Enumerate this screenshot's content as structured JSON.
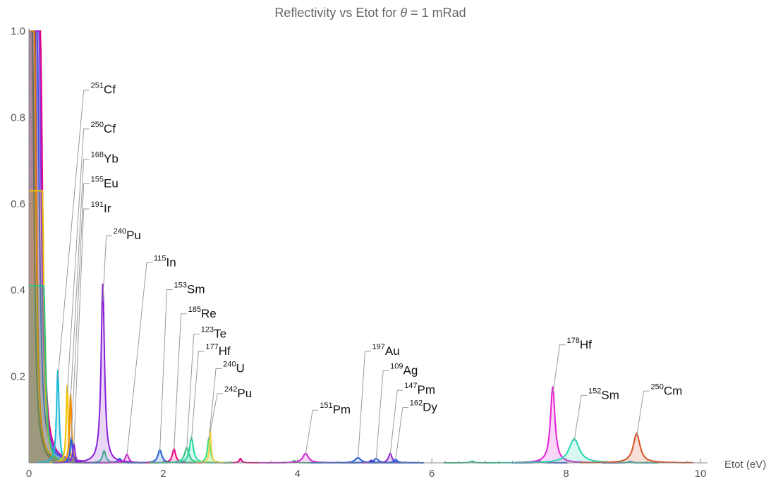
{
  "chart_data": {
    "type": "line",
    "title_prefix": "Reflectivity vs Etot for ",
    "title_symbol": "θ",
    "title_suffix": " = 1 mRad",
    "xlabel": "Etot (eV)",
    "ylabel": "",
    "xlim": [
      0,
      10
    ],
    "ylim": [
      0,
      1
    ],
    "xticks": [
      "0",
      "2",
      "4",
      "6",
      "8",
      "10"
    ],
    "yticks": [
      "0.2",
      "0.4",
      "0.6",
      "0.8",
      "1.0"
    ],
    "grid": false,
    "filled": true,
    "background_edge": {
      "color": "#8b5a4a",
      "description_values": [
        [
          0.0,
          1.0
        ],
        [
          0.1,
          1.0
        ],
        [
          0.14,
          0.6
        ],
        [
          0.2,
          0.25
        ],
        [
          0.3,
          0.08
        ],
        [
          0.5,
          0.02
        ],
        [
          0.8,
          0.005
        ]
      ]
    },
    "low_energy_curves": [
      {
        "color": "#e6007e",
        "peak_x": 0.17,
        "peak_y": 1.0,
        "width": 0.05
      },
      {
        "color": "#2e7d32",
        "peak_x": 0.05,
        "peak_y": 1.0,
        "width": 0.04
      },
      {
        "color": "#1f5fd6",
        "peak_x": 0.12,
        "peak_y": 1.0,
        "width": 0.05
      },
      {
        "color": "#8a2be2",
        "peak_x": 0.15,
        "peak_y": 1.0,
        "width": 0.05
      },
      {
        "color": "#e07b00",
        "peak_x": 0.08,
        "peak_y": 1.0,
        "width": 0.04
      },
      {
        "color": "#e6c200",
        "peak_x": 0.2,
        "peak_y": 0.63,
        "width": 0.035
      },
      {
        "color": "#2ec27e",
        "peak_x": 0.22,
        "peak_y": 0.41,
        "width": 0.04
      }
    ],
    "peaks": [
      {
        "mass": "251",
        "element": "Cf",
        "x": 0.43,
        "y": 0.215,
        "color": "#1ab8d8",
        "width": 0.022
      },
      {
        "mass": "250",
        "element": "Cf",
        "x": 0.57,
        "y": 0.18,
        "color": "#f2c500",
        "width": 0.018
      },
      {
        "mass": "168",
        "element": "Yb",
        "x": 0.62,
        "y": 0.16,
        "color": "#f08c00",
        "width": 0.018
      },
      {
        "mass": "155",
        "element": "Eu",
        "x": 0.63,
        "y": 0.058,
        "color": "#1f5fd6",
        "width": 0.02
      },
      {
        "mass": "191",
        "element": "Ir",
        "x": 0.67,
        "y": 0.045,
        "color": "#8a2be2",
        "width": 0.02
      },
      {
        "mass": "240",
        "element": "Pu",
        "x": 1.1,
        "y": 0.415,
        "color": "#8a1fd8",
        "width": 0.03
      },
      {
        "mass": "115",
        "element": "In",
        "x": 1.46,
        "y": 0.02,
        "color": "#d21fd6",
        "width": 0.03
      },
      {
        "mass": "153",
        "element": "Sm",
        "x": 1.95,
        "y": 0.03,
        "color": "#1f5fd6",
        "width": 0.035
      },
      {
        "mass": "185",
        "element": "Re",
        "x": 2.16,
        "y": 0.032,
        "color": "#e6007e",
        "width": 0.03
      },
      {
        "mass": "123",
        "element": "Te",
        "x": 2.35,
        "y": 0.035,
        "color": "#2ec27e",
        "width": 0.04
      },
      {
        "mass": "177",
        "element": "Hf",
        "x": 2.42,
        "y": 0.058,
        "color": "#1fd8a0",
        "width": 0.035
      },
      {
        "mass": "240",
        "element": "U",
        "x": 2.68,
        "y": 0.058,
        "color": "#2ee07b",
        "width": 0.025
      },
      {
        "mass": "242",
        "element": "Pu",
        "x": 2.7,
        "y": 0.08,
        "color": "#f2d24a",
        "width": 0.015
      },
      {
        "mass": "151",
        "element": "Pm",
        "x": 4.12,
        "y": 0.022,
        "color": "#d21fd6",
        "width": 0.05
      },
      {
        "mass": "197",
        "element": "Au",
        "x": 4.9,
        "y": 0.012,
        "color": "#1f5fd6",
        "width": 0.05
      },
      {
        "mass": "109",
        "element": "Ag",
        "x": 5.17,
        "y": 0.01,
        "color": "#1f5fd6",
        "width": 0.04
      },
      {
        "mass": "147",
        "element": "Pm",
        "x": 5.38,
        "y": 0.022,
        "color": "#8a1fd8",
        "width": 0.03
      },
      {
        "mass": "162",
        "element": "Dy",
        "x": 5.46,
        "y": 0.008,
        "color": "#1f5fd6",
        "width": 0.03
      },
      {
        "mass": "178",
        "element": "Hf",
        "x": 7.8,
        "y": 0.177,
        "color": "#e61fd6",
        "width": 0.04
      },
      {
        "mass": "152",
        "element": "Sm",
        "x": 8.12,
        "y": 0.056,
        "color": "#1fd8b0",
        "width": 0.09
      },
      {
        "mass": "250",
        "element": "Cm",
        "x": 9.05,
        "y": 0.068,
        "color": "#d2501f",
        "width": 0.06
      }
    ],
    "minor_peaks": [
      {
        "x": 1.12,
        "y": 0.028,
        "color": "#2ec27e",
        "width": 0.03
      },
      {
        "x": 1.35,
        "y": 0.01,
        "color": "#1f5fd6",
        "width": 0.03
      },
      {
        "x": 3.15,
        "y": 0.01,
        "color": "#e6007e",
        "width": 0.02
      },
      {
        "x": 3.95,
        "y": 0.005,
        "color": "#2ec27e",
        "width": 0.03
      },
      {
        "x": 5.1,
        "y": 0.006,
        "color": "#8a1fd8",
        "width": 0.03
      },
      {
        "x": 6.6,
        "y": 0.004,
        "color": "#2ec27e",
        "width": 0.03
      },
      {
        "x": 7.6,
        "y": 0.004,
        "color": "#1f5fd6",
        "width": 0.03
      },
      {
        "x": 8.95,
        "y": 0.003,
        "color": "#1f5fd6",
        "width": 0.03
      }
    ],
    "labels": [
      {
        "mass": "251",
        "element": "Cf",
        "peak": 0,
        "label_y": 0.855
      },
      {
        "mass": "250",
        "element": "Cf",
        "peak": 1,
        "label_y": 0.765
      },
      {
        "mass": "168",
        "element": "Yb",
        "peak": 2,
        "label_y": 0.695
      },
      {
        "mass": "155",
        "element": "Eu",
        "peak": 3,
        "label_y": 0.638
      },
      {
        "mass": "191",
        "element": "Ir",
        "peak": 4,
        "label_y": 0.58
      },
      {
        "mass": "240",
        "element": "Pu",
        "peak": 5,
        "label_y": 0.518
      },
      {
        "mass": "115",
        "element": "In",
        "peak": 6,
        "label_y": 0.455
      },
      {
        "mass": "153",
        "element": "Sm",
        "peak": 7,
        "label_y": 0.393
      },
      {
        "mass": "185",
        "element": "Re",
        "peak": 8,
        "label_y": 0.337
      },
      {
        "mass": "123",
        "element": "Te",
        "peak": 9,
        "label_y": 0.29
      },
      {
        "mass": "177",
        "element": "Hf",
        "peak": 10,
        "label_y": 0.25
      },
      {
        "mass": "240",
        "element": "U",
        "peak": 11,
        "label_y": 0.21
      },
      {
        "mass": "242",
        "element": "Pu",
        "peak": 12,
        "label_y": 0.152
      },
      {
        "mass": "151",
        "element": "Pm",
        "peak": 13,
        "label_y": 0.114
      },
      {
        "mass": "197",
        "element": "Au",
        "peak": 14,
        "label_y": 0.25
      },
      {
        "mass": "109",
        "element": "Ag",
        "peak": 15,
        "label_y": 0.205
      },
      {
        "mass": "147",
        "element": "Pm",
        "peak": 16,
        "label_y": 0.16
      },
      {
        "mass": "162",
        "element": "Dy",
        "peak": 17,
        "label_y": 0.12
      },
      {
        "mass": "178",
        "element": "Hf",
        "peak": 18,
        "label_y": 0.265
      },
      {
        "mass": "152",
        "element": "Sm",
        "peak": 19,
        "label_y": 0.148
      },
      {
        "mass": "250",
        "element": "Cm",
        "peak": 20,
        "label_y": 0.158
      }
    ]
  }
}
